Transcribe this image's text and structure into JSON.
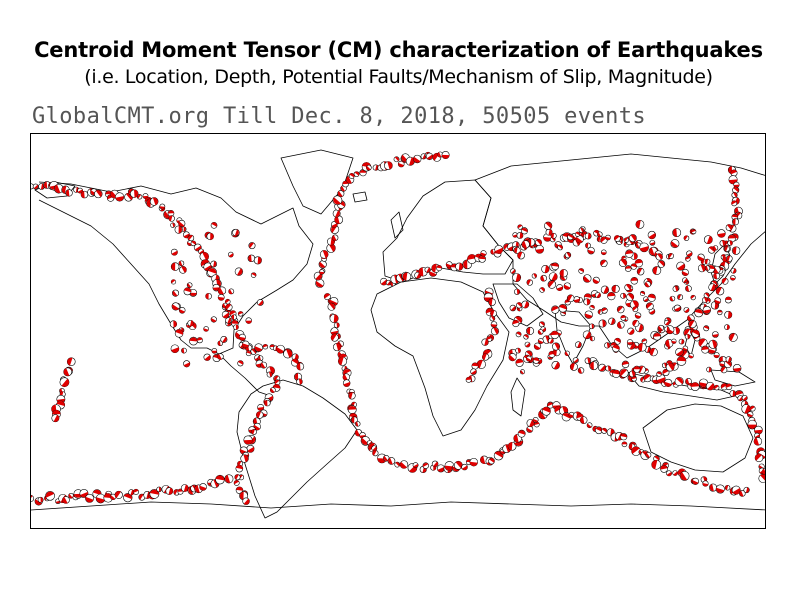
{
  "header": {
    "title": "Centroid Moment Tensor (CM) characterization of Earthquakes",
    "subtitle": "(i.e. Location, Depth, Potential Faults/Mechanism of Slip, Magnitude)"
  },
  "stamp": {
    "text": "GlobalCMT.org Till Dec. 8, 2018, 50505 events"
  },
  "map": {
    "projection": "equirectangular world map",
    "colors": {
      "coastline": "#000000",
      "frame": "#000000",
      "beachball_fill": "#e00000",
      "beachball_white": "#ffffff",
      "beachball_outline": "#000000",
      "stamp_text": "#555555"
    }
  }
}
